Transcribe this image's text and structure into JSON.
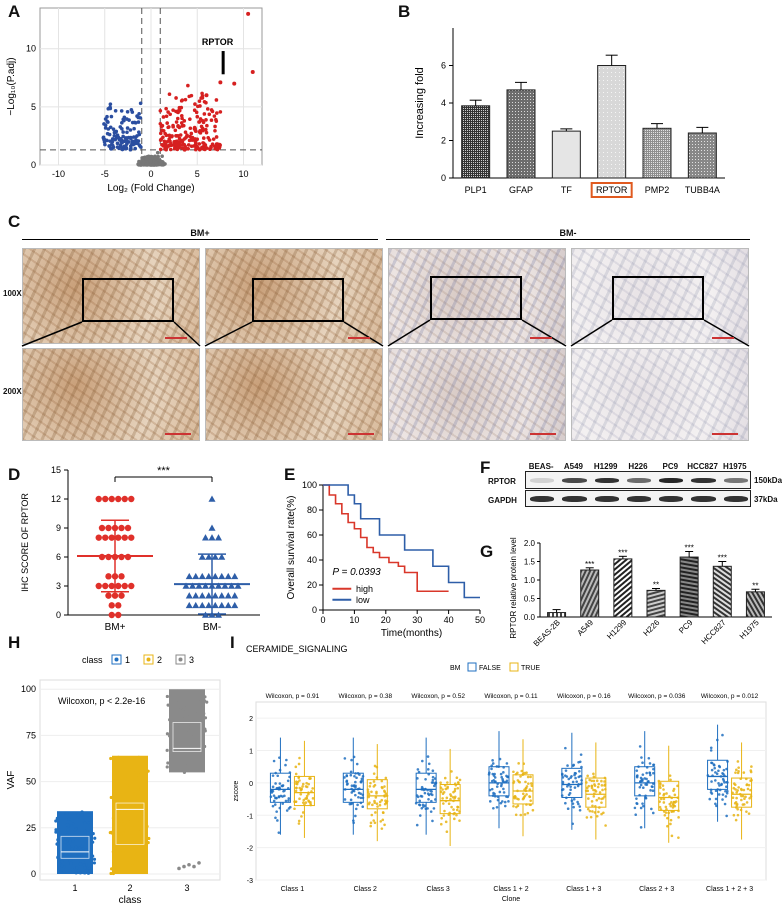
{
  "panels": {
    "A": "A",
    "B": "B",
    "C": "C",
    "D": "D",
    "E": "E",
    "F": "F",
    "G": "G",
    "H": "H",
    "I": "I"
  },
  "volcano": {
    "xlabel": "Log₂ (Fold Change)",
    "ylabel": "−Log₁₀(P.adj)",
    "xticks": [
      "-10",
      "-5",
      "0",
      "5",
      "10"
    ],
    "yticks": [
      "0",
      "5",
      "10"
    ],
    "annotation": "RPTOR",
    "colors": {
      "down": "#2b4ea0",
      "up": "#d62020",
      "ns": "#777777"
    }
  },
  "chart_data": [
    {
      "id": "B",
      "type": "bar",
      "categories": [
        "PLP1",
        "GFAP",
        "TF",
        "RPTOR",
        "PMP2",
        "TUBB4A"
      ],
      "values": [
        3.85,
        4.7,
        2.5,
        6.0,
        2.65,
        2.4
      ],
      "errors": [
        0.3,
        0.4,
        0.12,
        0.55,
        0.25,
        0.3
      ],
      "ylabel": "Increasing  fold",
      "yticks": [
        "0",
        "2",
        "4",
        "6"
      ],
      "ylim": [
        0,
        8
      ],
      "highlight": "RPTOR",
      "highlight_color": "#e05a20"
    },
    {
      "id": "D",
      "type": "scatter",
      "categories": [
        "BM+",
        "BM-"
      ],
      "ylabel": "IHC SCORE OF RPTOR",
      "yticks": [
        "0",
        "3",
        "6",
        "9",
        "12",
        "15"
      ],
      "ylim": [
        0,
        15
      ],
      "means": [
        6.1,
        3.2
      ],
      "sd": [
        3.7,
        3.1
      ],
      "significance": "***",
      "colors": [
        "#e0302a",
        "#2e5ea8"
      ]
    },
    {
      "id": "E",
      "type": "line",
      "xlabel": "Time(months)",
      "ylabel": "Overall survival rate(%)",
      "xticks": [
        "0",
        "10",
        "20",
        "30",
        "40",
        "50"
      ],
      "yticks": [
        "0",
        "20",
        "40",
        "60",
        "80",
        "100"
      ],
      "pvalue": "P = 0.0393",
      "series": [
        {
          "name": "high",
          "color": "#d9372a",
          "x": [
            0,
            2,
            4,
            6,
            8,
            10,
            12,
            14,
            16,
            18,
            21,
            24,
            26,
            30,
            40
          ],
          "y": [
            100,
            92,
            85,
            77,
            70,
            65,
            58,
            50,
            46,
            42,
            38,
            35,
            30,
            15,
            15
          ]
        },
        {
          "name": "low",
          "color": "#2e5ea8",
          "x": [
            0,
            6,
            8,
            10,
            12,
            15,
            18,
            22,
            26,
            30,
            35,
            40,
            45,
            50
          ],
          "y": [
            100,
            100,
            92,
            85,
            73,
            73,
            60,
            60,
            48,
            48,
            35,
            22,
            10,
            10
          ]
        }
      ]
    },
    {
      "id": "G",
      "type": "bar",
      "categories": [
        "BEAS-2B",
        "A549",
        "H1299",
        "H226",
        "PC9",
        "HCC827",
        "H1975"
      ],
      "values": [
        0.12,
        1.27,
        1.57,
        0.72,
        1.62,
        1.37,
        0.68
      ],
      "errors": [
        0.08,
        0.06,
        0.07,
        0.05,
        0.15,
        0.13,
        0.07
      ],
      "significance": [
        "",
        "***",
        "***",
        "**",
        "***",
        "***",
        "**"
      ],
      "ylabel": "RPTOR relative protein level",
      "yticks": [
        "0.0",
        "0.5",
        "1.0",
        "1.5",
        "2.0"
      ],
      "ylim": [
        0,
        2.0
      ]
    },
    {
      "id": "H",
      "type": "scatter",
      "categories": [
        "1",
        "2",
        "3"
      ],
      "xlabel": "class",
      "ylabel": "VAF",
      "yticks": [
        "0",
        "25",
        "50",
        "75",
        "100"
      ],
      "ylim": [
        0,
        100
      ],
      "legend_title": "class",
      "legend": [
        "1",
        "2",
        "3"
      ],
      "colors": [
        "#1f6fc0",
        "#e8b414",
        "#8a8a8a"
      ],
      "ranges": [
        [
          0,
          34
        ],
        [
          0,
          64
        ],
        [
          55,
          100
        ]
      ],
      "medians": [
        12,
        35,
        68
      ],
      "stat": "Wilcoxon, p < 2.2e-16"
    },
    {
      "id": "I",
      "type": "scatter",
      "title": "CERAMIDE_SIGNALING",
      "xlabel": "Clone",
      "ylabel": "zscore",
      "categories": [
        "Class 1",
        "Class 2",
        "Class 3",
        "Class 1 + 2",
        "Class 1 + 3",
        "Class 2 + 3",
        "Class 1 + 2 + 3"
      ],
      "pvalues": [
        "Wilcoxon, p = 0.91",
        "Wilcoxon, p = 0.38",
        "Wilcoxon, p = 0.52",
        "Wilcoxon, p = 0.11",
        "Wilcoxon, p = 0.16",
        "Wilcoxon, p = 0.036",
        "Wilcoxon, p = 0.012"
      ],
      "yticks": [
        "-3",
        "-2",
        "-1",
        "0",
        "1",
        "2"
      ],
      "ylim": [
        -3,
        2.5
      ],
      "legend_title": "BM",
      "legend": [
        "FALSE",
        "TRUE"
      ],
      "colors": [
        "#1f6fc0",
        "#e8b414"
      ],
      "medians_false": [
        -0.2,
        -0.2,
        -0.2,
        0.0,
        -0.05,
        0.0,
        0.2
      ],
      "medians_true": [
        -0.3,
        -0.4,
        -0.55,
        -0.25,
        -0.35,
        -0.45,
        -0.35
      ]
    }
  ],
  "ihc": {
    "group_pos": "BM+",
    "group_neg": "BM-",
    "mag_100": "100X",
    "mag_200": "200X"
  },
  "western": {
    "cells": [
      "BEAS-2B",
      "A549",
      "H1299",
      "H226",
      "PC9",
      "HCC827",
      "H1975"
    ],
    "rows": [
      "RPTOR",
      "GAPDH"
    ],
    "sizes": [
      "150kDa",
      "37kDa"
    ],
    "rptor_level": [
      0.15,
      0.75,
      0.85,
      0.6,
      0.9,
      0.85,
      0.55
    ]
  }
}
